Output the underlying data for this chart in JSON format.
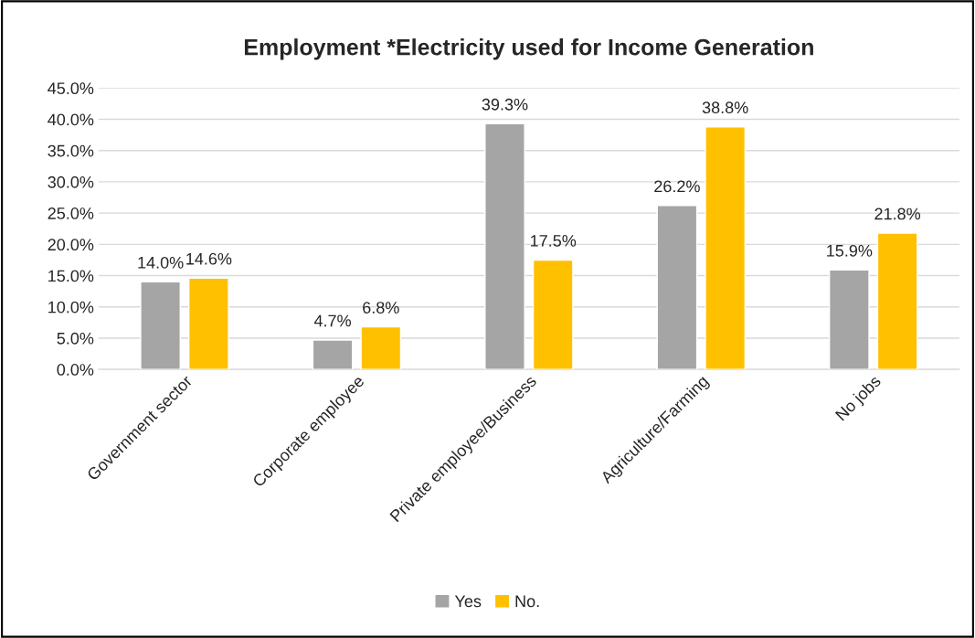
{
  "chart_data": {
    "type": "bar",
    "title": "Employment *Electricity used for Income Generation",
    "categories": [
      "Government sector",
      "Corporate employee",
      "Private employee/Business",
      "Agriculture/Farming",
      "No jobs"
    ],
    "series": [
      {
        "name": "Yes",
        "color": "#a5a5a5",
        "values": [
          14.0,
          4.7,
          39.3,
          26.2,
          15.9
        ],
        "value_labels": [
          "14.0%",
          "4.7%",
          "39.3%",
          "26.2%",
          "15.9%"
        ]
      },
      {
        "name": "No.",
        "color": "#ffc000",
        "values": [
          14.6,
          6.8,
          17.5,
          38.8,
          21.8
        ],
        "value_labels": [
          "14.6%",
          "6.8%",
          "17.5%",
          "38.8%",
          "21.8%"
        ]
      }
    ],
    "ylim": [
      0,
      45
    ],
    "yticks": [
      {
        "value": 0,
        "label": "0.0%"
      },
      {
        "value": 5,
        "label": "5.0%"
      },
      {
        "value": 10,
        "label": "10.0%"
      },
      {
        "value": 15,
        "label": "15.0%"
      },
      {
        "value": 20,
        "label": "20.0%"
      },
      {
        "value": 25,
        "label": "25.0%"
      },
      {
        "value": 30,
        "label": "30.0%"
      },
      {
        "value": 35,
        "label": "35.0%"
      },
      {
        "value": 40,
        "label": "40.0%"
      },
      {
        "value": 45,
        "label": "45.0%"
      }
    ],
    "grid": "y",
    "legend": "bottom"
  }
}
